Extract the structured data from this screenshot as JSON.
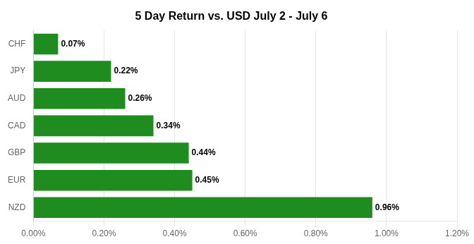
{
  "chart_data": {
    "type": "bar",
    "orientation": "horizontal",
    "title": "5 Day Return vs. USD July 2 - July 6",
    "categories": [
      "NZD",
      "EUR",
      "GBP",
      "CAD",
      "AUD",
      "JPY",
      "CHF"
    ],
    "values": [
      0.0096,
      0.0045,
      0.0044,
      0.0034,
      0.0026,
      0.0022,
      0.0007
    ],
    "value_labels": [
      "0.96%",
      "0.45%",
      "0.44%",
      "0.34%",
      "0.26%",
      "0.22%",
      "0.07%"
    ],
    "data_labels": true,
    "color": "#1e8c1e",
    "xlim": [
      0,
      0.012
    ],
    "xticks": [
      {
        "value": 0.0,
        "label": "0.00%"
      },
      {
        "value": 0.002,
        "label": "0.20%"
      },
      {
        "value": 0.004,
        "label": "0.40%"
      },
      {
        "value": 0.006,
        "label": "0.60%"
      },
      {
        "value": 0.008,
        "label": "0.80%"
      },
      {
        "value": 0.01,
        "label": "1.00%"
      },
      {
        "value": 0.012,
        "label": "1.20%"
      }
    ],
    "grid": true
  }
}
